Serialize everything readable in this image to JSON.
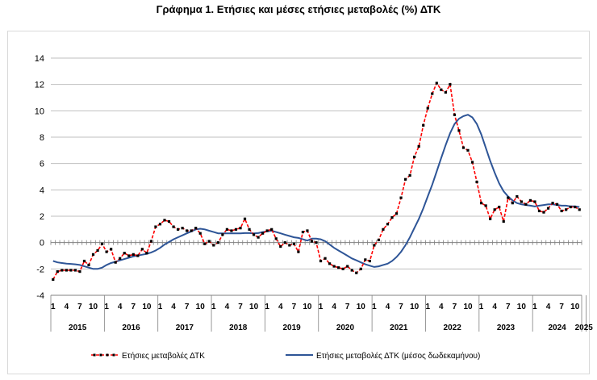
{
  "chart_data": {
    "type": "line",
    "title": "Γράφημα 1. Ετήσιες και μέσες ετήσιες μεταβολές (%) ΔΤΚ",
    "xlabel": "",
    "ylabel": "",
    "ylim": [
      -4,
      14
    ],
    "yticks": [
      -4,
      -2,
      0,
      2,
      4,
      6,
      8,
      10,
      12,
      14
    ],
    "grid": "horizontal",
    "legend_position": "bottom",
    "month_tick_labels": [
      "1",
      "4",
      "7",
      "10"
    ],
    "year_labels": [
      "2015",
      "2016",
      "2017",
      "2018",
      "2019",
      "2020",
      "2021",
      "2022",
      "2023",
      "2024",
      "2025"
    ],
    "start": "2015-01",
    "series": [
      {
        "name": "Ετήσιες μεταβολές ΔΤΚ",
        "color": "#ff0000",
        "marker_color": "#000000",
        "style": "dashed-with-markers",
        "values": [
          -2.8,
          -2.2,
          -2.1,
          -2.1,
          -2.1,
          -2.1,
          -2.2,
          -1.4,
          -1.7,
          -0.9,
          -0.6,
          -0.1,
          -0.7,
          -0.5,
          -1.5,
          -1.2,
          -0.8,
          -1.0,
          -0.9,
          -1.0,
          -0.5,
          -0.8,
          0.1,
          1.2,
          1.4,
          1.7,
          1.6,
          1.2,
          1.0,
          1.1,
          0.9,
          0.9,
          1.1,
          0.7,
          -0.1,
          0.1,
          -0.2,
          0.0,
          0.6,
          1.0,
          0.9,
          1.0,
          1.1,
          1.8,
          1.0,
          0.6,
          0.4,
          0.7,
          0.9,
          1.0,
          0.3,
          -0.3,
          0.0,
          -0.2,
          -0.1,
          -0.7,
          0.8,
          0.9,
          0.1,
          0.0,
          -1.4,
          -1.2,
          -1.6,
          -1.8,
          -1.9,
          -2.0,
          -1.8,
          -2.1,
          -2.3,
          -2.0,
          -1.3,
          -1.4,
          -0.2,
          0.2,
          1.0,
          1.4,
          1.9,
          2.2,
          3.4,
          4.8,
          5.1,
          6.5,
          7.3,
          8.9,
          10.2,
          11.3,
          12.1,
          11.6,
          11.4,
          12.0,
          9.7,
          8.5,
          7.2,
          7.0,
          6.1,
          4.6,
          3.0,
          2.8,
          1.8,
          2.5,
          2.7,
          1.6,
          3.4,
          3.0,
          3.5,
          3.1,
          2.9,
          3.2,
          3.1,
          2.4,
          2.3,
          2.6,
          3.0,
          2.9,
          2.4,
          2.5,
          2.7,
          2.7,
          2.5
        ]
      },
      {
        "name": "Ετήσιες μεταβολές ΔΤΚ (μέσος δωδεκαμήνου)",
        "color": "#2e5597",
        "style": "solid",
        "values": [
          -1.4,
          -1.5,
          -1.55,
          -1.6,
          -1.62,
          -1.65,
          -1.7,
          -1.8,
          -1.9,
          -2.0,
          -2.0,
          -1.9,
          -1.7,
          -1.55,
          -1.45,
          -1.35,
          -1.25,
          -1.15,
          -1.05,
          -0.98,
          -0.92,
          -0.85,
          -0.75,
          -0.6,
          -0.4,
          -0.15,
          0.05,
          0.25,
          0.4,
          0.55,
          0.7,
          0.85,
          1.0,
          1.05,
          1.0,
          0.9,
          0.8,
          0.7,
          0.7,
          0.7,
          0.7,
          0.7,
          0.7,
          0.72,
          0.72,
          0.7,
          0.72,
          0.8,
          0.85,
          0.9,
          0.8,
          0.7,
          0.6,
          0.5,
          0.4,
          0.35,
          0.25,
          0.15,
          0.3,
          0.3,
          0.25,
          0.1,
          -0.15,
          -0.4,
          -0.6,
          -0.8,
          -1.0,
          -1.2,
          -1.35,
          -1.5,
          -1.65,
          -1.75,
          -1.85,
          -1.8,
          -1.7,
          -1.6,
          -1.4,
          -1.1,
          -0.7,
          -0.2,
          0.4,
          1.1,
          1.8,
          2.6,
          3.5,
          4.4,
          5.4,
          6.4,
          7.4,
          8.3,
          9.0,
          9.4,
          9.6,
          9.7,
          9.5,
          9.0,
          8.2,
          7.2,
          6.2,
          5.3,
          4.5,
          3.9,
          3.5,
          3.2,
          3.0,
          2.9,
          2.85,
          2.8,
          2.75,
          2.8,
          2.85,
          2.9,
          2.9,
          2.85,
          2.8,
          2.8,
          2.75,
          2.75,
          2.7
        ]
      }
    ]
  }
}
